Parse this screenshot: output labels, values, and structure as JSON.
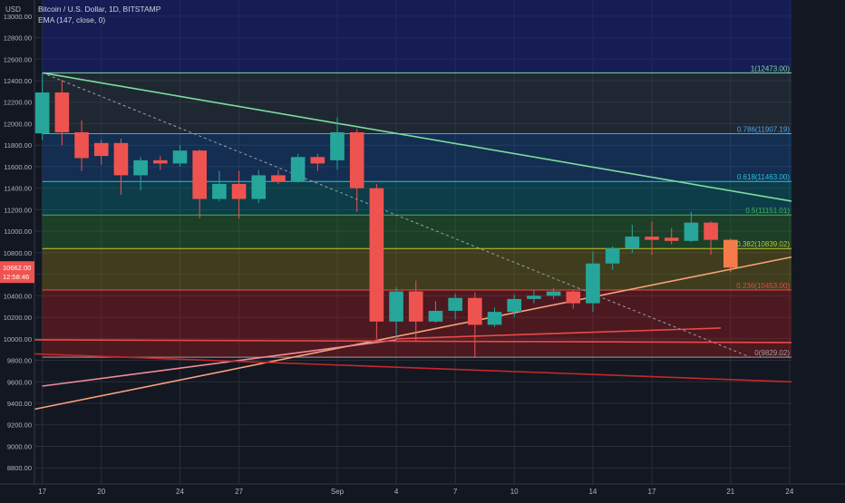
{
  "legend": {
    "line1": "Bitcoin / U.S. Dollar, 1D, BITSTAMP",
    "line2": "EMA (147, close, 0)"
  },
  "currency": "USD",
  "price_badge": {
    "price": "10662.00",
    "timer": "12:58:46"
  },
  "colors": {
    "background": "#131722",
    "up": "#26a69a",
    "down": "#ef5350",
    "last_candle": "#f57c4a",
    "trendline_green": "#7ddc9d",
    "trendline_red": "#e84a4a",
    "trendline_pink": "#f28b95",
    "trendline_orange": "#f5a37a"
  },
  "chart_data": {
    "type": "candlestick",
    "y_axis": {
      "range": [
        8650,
        13150
      ],
      "ticks": [
        13000,
        12800,
        12600,
        12400,
        12200,
        12000,
        11800,
        11600,
        11400,
        11200,
        11000,
        10800,
        10600,
        10400,
        10200,
        10000,
        9800,
        9600,
        9400,
        9200,
        9000,
        8800
      ],
      "tick_labels": [
        "13000.00",
        "12800.00",
        "12600.00",
        "12400.00",
        "12200.00",
        "12000.00",
        "11800.00",
        "11600.00",
        "11400.00",
        "11200.00",
        "11000.00",
        "10800.00",
        "10600.00",
        "10400.00",
        "10200.00",
        "10000.00",
        "9800.00",
        "9600.00",
        "9400.00",
        "9200.00",
        "9000.00",
        "8800.00"
      ]
    },
    "x_axis": {
      "range": [
        16.6,
        55.1
      ],
      "ticks": [
        {
          "x": 17,
          "label": "17"
        },
        {
          "x": 20,
          "label": "20"
        },
        {
          "x": 24,
          "label": "24"
        },
        {
          "x": 27,
          "label": "27"
        },
        {
          "x": 32,
          "label": "Sep"
        },
        {
          "x": 35,
          "label": "4"
        },
        {
          "x": 38,
          "label": "7"
        },
        {
          "x": 41,
          "label": "10"
        },
        {
          "x": 45,
          "label": "14"
        },
        {
          "x": 48,
          "label": "17"
        },
        {
          "x": 52,
          "label": "21"
        },
        {
          "x": 55,
          "label": "24"
        }
      ]
    },
    "candles": [
      {
        "x": 17,
        "o": 11910,
        "h": 12470,
        "l": 11850,
        "c": 12290
      },
      {
        "x": 18,
        "o": 12290,
        "h": 12410,
        "l": 11800,
        "c": 11920
      },
      {
        "x": 19,
        "o": 11920,
        "h": 12030,
        "l": 11560,
        "c": 11680
      },
      {
        "x": 20,
        "o": 11820,
        "h": 11850,
        "l": 11620,
        "c": 11700
      },
      {
        "x": 21,
        "o": 11820,
        "h": 11860,
        "l": 11340,
        "c": 11520
      },
      {
        "x": 22,
        "o": 11520,
        "h": 11690,
        "l": 11380,
        "c": 11660
      },
      {
        "x": 23,
        "o": 11660,
        "h": 11700,
        "l": 11570,
        "c": 11630
      },
      {
        "x": 24,
        "o": 11630,
        "h": 11800,
        "l": 11600,
        "c": 11750
      },
      {
        "x": 25,
        "o": 11750,
        "h": 11760,
        "l": 11120,
        "c": 11300
      },
      {
        "x": 26,
        "o": 11300,
        "h": 11560,
        "l": 11280,
        "c": 11440
      },
      {
        "x": 27,
        "o": 11440,
        "h": 11560,
        "l": 11120,
        "c": 11300
      },
      {
        "x": 28,
        "o": 11300,
        "h": 11570,
        "l": 11260,
        "c": 11520
      },
      {
        "x": 29,
        "o": 11520,
        "h": 11570,
        "l": 11440,
        "c": 11460
      },
      {
        "x": 30,
        "o": 11460,
        "h": 11720,
        "l": 11450,
        "c": 11690
      },
      {
        "x": 31,
        "o": 11690,
        "h": 11720,
        "l": 11560,
        "c": 11630
      },
      {
        "x": 32,
        "o": 11660,
        "h": 12060,
        "l": 11570,
        "c": 11920
      },
      {
        "x": 33,
        "o": 11920,
        "h": 11950,
        "l": 11180,
        "c": 11400
      },
      {
        "x": 34,
        "o": 11400,
        "h": 11440,
        "l": 10000,
        "c": 10160
      },
      {
        "x": 35,
        "o": 10160,
        "h": 10480,
        "l": 9990,
        "c": 10440
      },
      {
        "x": 36,
        "o": 10440,
        "h": 10540,
        "l": 9980,
        "c": 10160
      },
      {
        "x": 37,
        "o": 10160,
        "h": 10350,
        "l": 10150,
        "c": 10260
      },
      {
        "x": 38,
        "o": 10260,
        "h": 10420,
        "l": 10180,
        "c": 10380
      },
      {
        "x": 39,
        "o": 10380,
        "h": 10430,
        "l": 9830,
        "c": 10130
      },
      {
        "x": 40,
        "o": 10130,
        "h": 10290,
        "l": 10110,
        "c": 10250
      },
      {
        "x": 41,
        "o": 10250,
        "h": 10410,
        "l": 10200,
        "c": 10370
      },
      {
        "x": 42,
        "o": 10370,
        "h": 10450,
        "l": 10330,
        "c": 10400
      },
      {
        "x": 43,
        "o": 10400,
        "h": 10470,
        "l": 10370,
        "c": 10440
      },
      {
        "x": 44,
        "o": 10440,
        "h": 10450,
        "l": 10280,
        "c": 10330
      },
      {
        "x": 45,
        "o": 10330,
        "h": 10810,
        "l": 10250,
        "c": 10700
      },
      {
        "x": 46,
        "o": 10700,
        "h": 10860,
        "l": 10640,
        "c": 10840
      },
      {
        "x": 47,
        "o": 10840,
        "h": 11060,
        "l": 10800,
        "c": 10950
      },
      {
        "x": 48,
        "o": 10950,
        "h": 11090,
        "l": 10780,
        "c": 10920
      },
      {
        "x": 49,
        "o": 10940,
        "h": 11030,
        "l": 10880,
        "c": 10910
      },
      {
        "x": 50,
        "o": 10910,
        "h": 11180,
        "l": 10900,
        "c": 11080
      },
      {
        "x": 51,
        "o": 11080,
        "h": 11090,
        "l": 10780,
        "c": 10920
      },
      {
        "x": 52,
        "o": 10920,
        "h": 10930,
        "l": 10620,
        "c": 10662
      }
    ],
    "fib_levels": [
      {
        "ratio": "1",
        "price": 12473.0,
        "label": "1(12473.00)",
        "color": "#7ddc9d"
      },
      {
        "ratio": "0.786",
        "price": 11907.19,
        "label": "0.786(11907.19)",
        "color": "#42a5f5"
      },
      {
        "ratio": "0.618",
        "price": 11463.0,
        "label": "0.618(11463.00)",
        "color": "#26c6da"
      },
      {
        "ratio": "0.5",
        "price": 11151.01,
        "label": "0.5(11151.01)",
        "color": "#4caf50"
      },
      {
        "ratio": "0.382",
        "price": 10839.02,
        "label": "0.382(10839.02)",
        "color": "#c0ca33"
      },
      {
        "ratio": "0.236",
        "price": 10453.0,
        "label": "0.236(10453.00)",
        "color": "#e84a4a"
      },
      {
        "ratio": "0",
        "price": 9829.02,
        "label": "0(9829.02)",
        "color": "#9e9e9e"
      }
    ],
    "fib_zones": [
      {
        "from": 12473.0,
        "to": 13150,
        "color": "#1a237e",
        "opacity": 0.55
      },
      {
        "from": 11907.19,
        "to": 12473.0,
        "color": "#37474f",
        "opacity": 0.35
      },
      {
        "from": 11463.0,
        "to": 11907.19,
        "color": "#1565c0",
        "opacity": 0.3
      },
      {
        "from": 11151.01,
        "to": 11463.0,
        "color": "#00838f",
        "opacity": 0.35
      },
      {
        "from": 10839.02,
        "to": 11151.01,
        "color": "#2e7d32",
        "opacity": 0.4
      },
      {
        "from": 10453.0,
        "to": 10839.02,
        "color": "#827717",
        "opacity": 0.4
      },
      {
        "from": 9829.02,
        "to": 10453.0,
        "color": "#b71c1c",
        "opacity": 0.35
      }
    ],
    "trendlines": [
      {
        "name": "descending-green",
        "color": "#7ddc9d",
        "points": [
          [
            17,
            12473
          ],
          [
            55.1,
            11280
          ]
        ],
        "dashed": false
      },
      {
        "name": "fib-diagonal",
        "color": "#9aa0b3",
        "points": [
          [
            17,
            12473
          ],
          [
            53,
            9829
          ]
        ],
        "dashed": true
      },
      {
        "name": "rising-orange",
        "color": "#f5a37a",
        "points": [
          [
            16.6,
            9345
          ],
          [
            55.1,
            10760
          ]
        ],
        "dashed": false
      },
      {
        "name": "rising-pink",
        "color": "#f28b95",
        "points": [
          [
            17,
            9560
          ],
          [
            35,
            9990
          ]
        ],
        "dashed": false
      },
      {
        "name": "short-red",
        "color": "#e84a4a",
        "points": [
          [
            35,
            10000
          ],
          [
            51.5,
            10100
          ]
        ],
        "dashed": false
      },
      {
        "name": "flat-red",
        "color": "#e84a4a",
        "points": [
          [
            16.6,
            9990
          ],
          [
            55.1,
            9965
          ]
        ],
        "dashed": false
      },
      {
        "name": "falling-red",
        "color": "#c62828",
        "points": [
          [
            16.6,
            9860
          ],
          [
            55.1,
            9600
          ]
        ],
        "dashed": false
      }
    ]
  }
}
